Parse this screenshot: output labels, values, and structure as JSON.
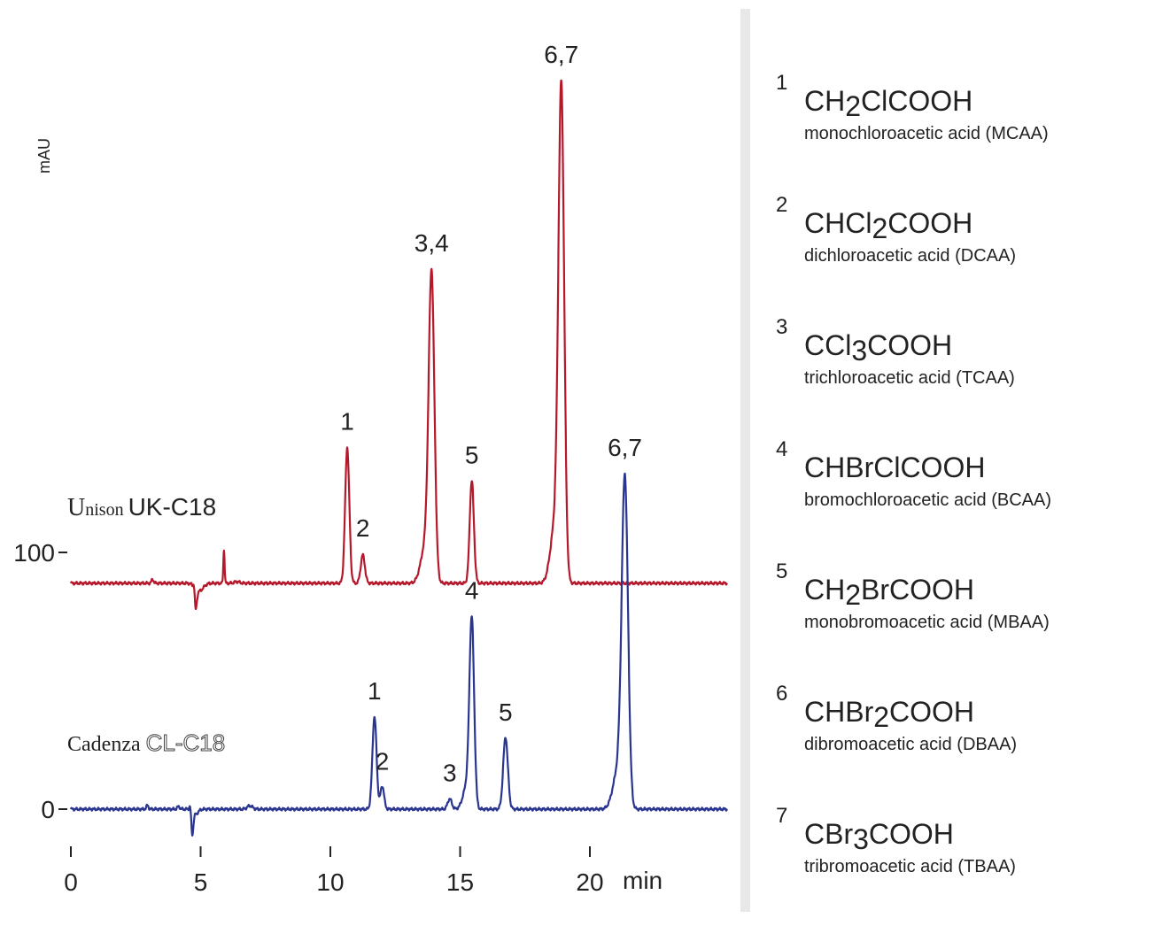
{
  "chart_data": {
    "type": "line",
    "xlabel": "min",
    "ylabel": "mAU",
    "x_ticks": [
      "0",
      "5",
      "10",
      "15",
      "20"
    ],
    "y_ticks": [
      "0",
      "100"
    ],
    "xlim": [
      0,
      25.3
    ],
    "series": [
      {
        "name": "Unison UK-C18",
        "color": "#b5182b",
        "baseline_offset_mAU": 88,
        "peaks": [
          {
            "label": "1",
            "time": 10.65,
            "height": 53,
            "width": 0.08
          },
          {
            "label": "2",
            "time": 11.25,
            "height": 11,
            "width": 0.08
          },
          {
            "label": "3,4",
            "time": 13.9,
            "height": 117,
            "width": 0.11
          },
          {
            "label": "5",
            "time": 15.45,
            "height": 40,
            "width": 0.08
          },
          {
            "label": "6,7",
            "time": 18.9,
            "height": 187,
            "width": 0.11
          }
        ]
      },
      {
        "name": "Cadenza CL-C18",
        "color": "#2a3590",
        "baseline_offset_mAU": 0,
        "peaks": [
          {
            "label": "1",
            "time": 11.7,
            "height": 36,
            "width": 0.08
          },
          {
            "label": "2",
            "time": 12.0,
            "height": 9,
            "width": 0.07
          },
          {
            "label": "3",
            "time": 14.6,
            "height": 4,
            "width": 0.08
          },
          {
            "label": "4",
            "time": 15.45,
            "height": 72,
            "width": 0.09
          },
          {
            "label": "5",
            "time": 16.75,
            "height": 28,
            "width": 0.09
          },
          {
            "label": "6,7",
            "time": 21.35,
            "height": 125,
            "width": 0.12
          }
        ]
      }
    ]
  },
  "legend": [
    {
      "num": "1",
      "formula_pre": "CH",
      "formula_sub": "2",
      "formula_post": "ClCOOH",
      "name": "monochloroacetic acid (MCAA)"
    },
    {
      "num": "2",
      "formula_pre": "CHCl",
      "formula_sub": "2",
      "formula_post": "COOH",
      "name": "dichloroacetic acid (DCAA)"
    },
    {
      "num": "3",
      "formula_pre": "CCl",
      "formula_sub": "3",
      "formula_post": "COOH",
      "name": "trichloroacetic acid (TCAA)"
    },
    {
      "num": "4",
      "formula_pre": "CHBrClCOOH",
      "formula_sub": "",
      "formula_post": "",
      "name": "bromochloroacetic acid (BCAA)"
    },
    {
      "num": "5",
      "formula_pre": "CH",
      "formula_sub": "2",
      "formula_post": "BrCOOH",
      "name": "monobromoacetic acid (MBAA)"
    },
    {
      "num": "6",
      "formula_pre": "CHBr",
      "formula_sub": "2",
      "formula_post": "COOH",
      "name": "dibromoacetic acid (DBAA)"
    },
    {
      "num": "7",
      "formula_pre": "CBr",
      "formula_sub": "3",
      "formula_post": "COOH",
      "name": "tribromoacetic acid (TBAA)"
    }
  ]
}
